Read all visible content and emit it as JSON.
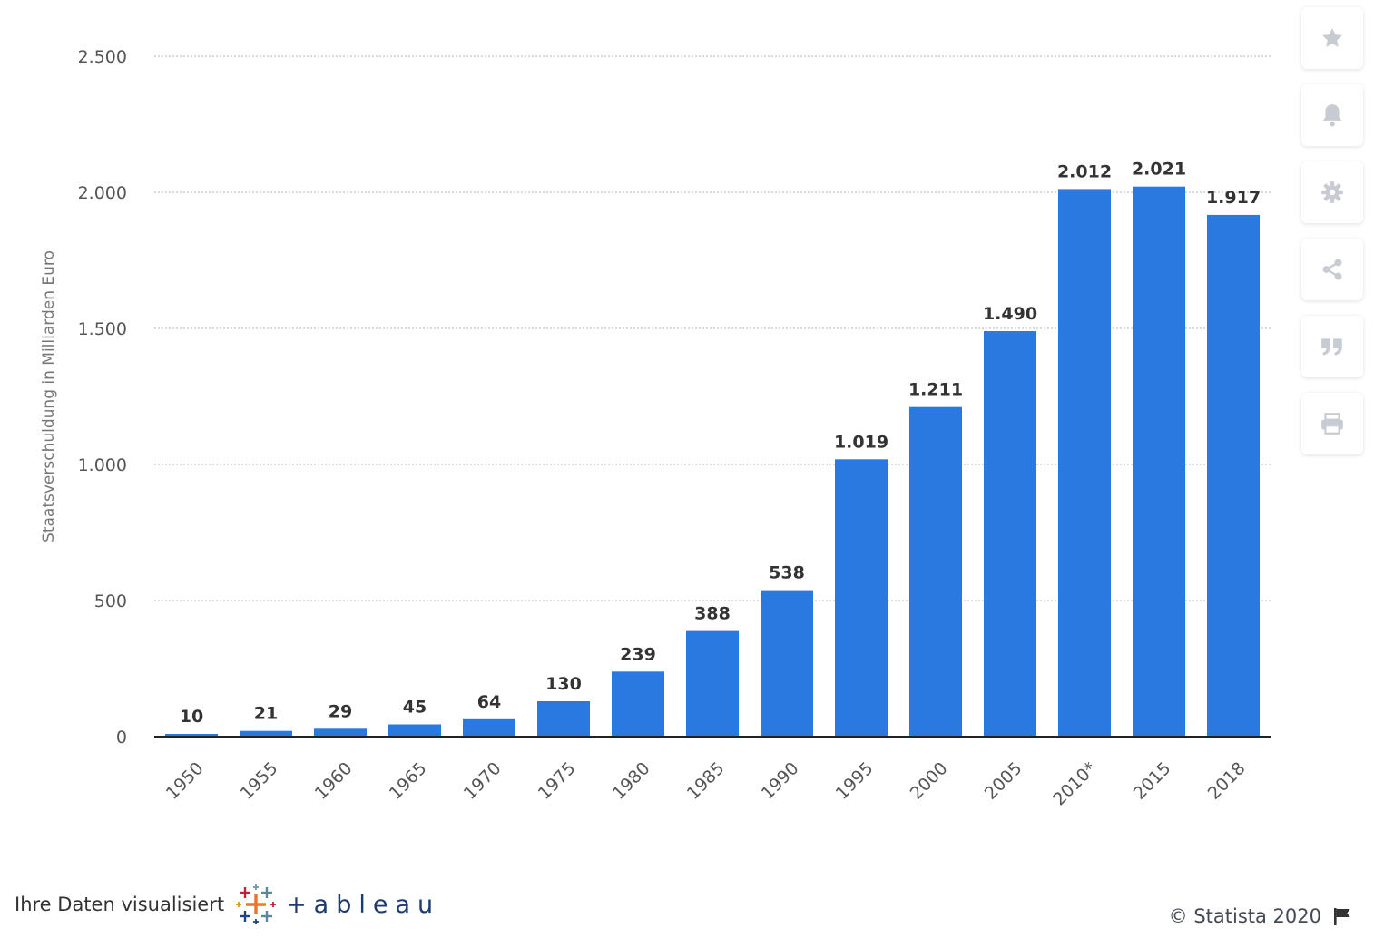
{
  "colors": {
    "bar": "#2a79e0",
    "grid": "#c4c4c4",
    "axis": "#222222",
    "icon": "#c8ccd2"
  },
  "chart_data": {
    "type": "bar",
    "categories": [
      "1950",
      "1955",
      "1960",
      "1965",
      "1970",
      "1975",
      "1980",
      "1985",
      "1990",
      "1995",
      "2000",
      "2005",
      "2010*",
      "2015",
      "2018"
    ],
    "values": [
      10,
      21,
      29,
      45,
      64,
      130,
      239,
      388,
      538,
      1019,
      1211,
      1490,
      2012,
      2021,
      1917
    ],
    "value_labels": [
      "10",
      "21",
      "29",
      "45",
      "64",
      "130",
      "239",
      "388",
      "538",
      "1.019",
      "1.211",
      "1.490",
      "2.012",
      "2.021",
      "1.917"
    ],
    "ylabel": "Staatsverschuldung in Milliarden Euro",
    "ylim": [
      0,
      2500
    ],
    "y_ticks": [
      0,
      500,
      1000,
      1500,
      2000,
      2500
    ],
    "y_tick_labels": [
      "0",
      "500",
      "1.000",
      "1.500",
      "2.000",
      "2.500"
    ],
    "grid": true,
    "legend": "none"
  },
  "toolbar": {
    "items": [
      {
        "name": "favorite-button",
        "icon": "star-icon"
      },
      {
        "name": "notification-button",
        "icon": "bell-icon"
      },
      {
        "name": "settings-button",
        "icon": "gear-icon"
      },
      {
        "name": "share-button",
        "icon": "share-icon"
      },
      {
        "name": "cite-button",
        "icon": "quote-icon"
      },
      {
        "name": "print-button",
        "icon": "printer-icon"
      }
    ]
  },
  "footer": {
    "visualized_text": "Ihre Daten visualisiert",
    "tableau_word": "+ableau",
    "copyright": "© Statista 2020",
    "flag_icon": "flag-icon"
  }
}
